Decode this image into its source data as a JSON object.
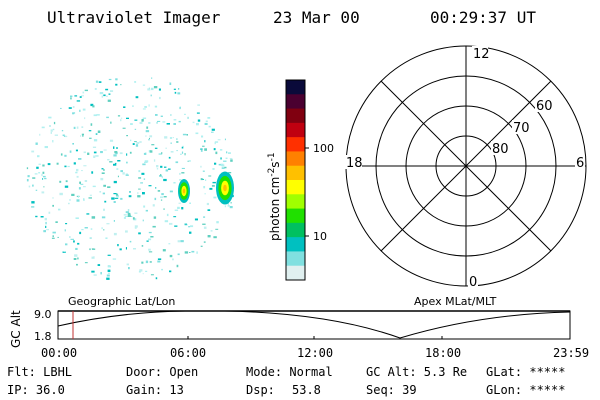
{
  "header": {
    "instrument": "Ultraviolet Imager",
    "date": "23 Mar 00",
    "time": "00:29:37 UT"
  },
  "colorbar": {
    "label": "photon cm",
    "label_sup1": "-2",
    "label_mid": "s",
    "label_sup2": "-1",
    "ticks": [
      "100",
      "10"
    ],
    "colors": [
      "#0a0a3a",
      "#4a0030",
      "#800010",
      "#c00010",
      "#ff3000",
      "#ff8000",
      "#ffc000",
      "#ffff00",
      "#a0ff00",
      "#20e000",
      "#00c060",
      "#00c0c0",
      "#80e0e0",
      "#e0f0f0"
    ]
  },
  "polar_grid": {
    "labels": {
      "top": "12",
      "bottom": "0",
      "left": "18",
      "right": "6"
    },
    "lat_labels": [
      "60",
      "70",
      "80"
    ]
  },
  "altitude_plot": {
    "ylabel": "GC Alt",
    "yticks": [
      "9.0",
      "1.8"
    ],
    "left_title": "Geographic Lat/Lon",
    "right_title": "Apex MLat/MLT",
    "xticks": [
      "00:00",
      "06:00",
      "12:00",
      "18:00",
      "23:59"
    ]
  },
  "status": {
    "flt": "Flt: LBHL",
    "ip": "IP: 36.0",
    "door": "Door: Open",
    "gain": "Gain: 13",
    "mode": "Mode: Normal",
    "dsp": "Dsp:",
    "dsp_val": "53.8",
    "gcalt": "GC Alt: 5.3 Re",
    "seq": "Seq: 39",
    "glat": "GLat: *****",
    "glon": "GLon: *****"
  }
}
